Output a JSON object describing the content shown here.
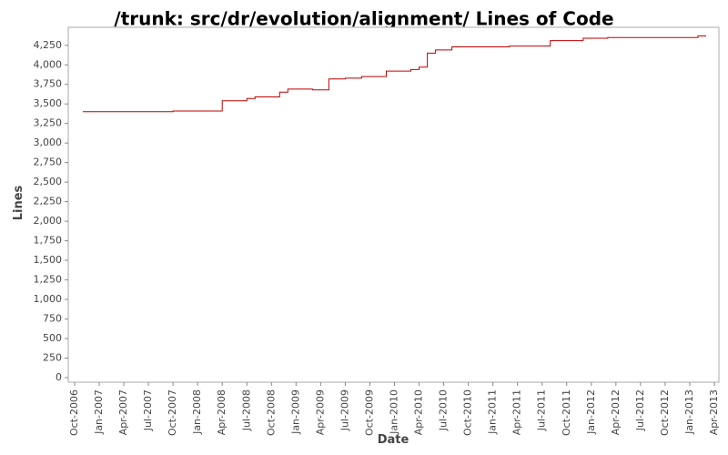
{
  "chart_data": {
    "type": "line",
    "title": "/trunk: src/dr/evolution/alignment/ Lines of Code",
    "x_label": "Date",
    "y_label": "Lines",
    "series": [
      {
        "name": "Lines",
        "color": "#c00000",
        "x": [
          "2006-11",
          "2007-10",
          "2007-10",
          "2008-04",
          "2008-04",
          "2008-07",
          "2008-07",
          "2008-08",
          "2008-08",
          "2008-11",
          "2008-11",
          "2008-12",
          "2008-12",
          "2009-03",
          "2009-03",
          "2009-05",
          "2009-05",
          "2009-07",
          "2009-07",
          "2009-09",
          "2009-09",
          "2009-12",
          "2009-12",
          "2010-03",
          "2010-03",
          "2010-04",
          "2010-04",
          "2010-05",
          "2010-05",
          "2010-06",
          "2010-06",
          "2010-08",
          "2010-08",
          "2011-03",
          "2011-03",
          "2011-08",
          "2011-08",
          "2011-12",
          "2011-12",
          "2012-03",
          "2012-03",
          "2013-02",
          "2013-02",
          "2013-03"
        ],
        "values": [
          3400,
          3400,
          3410,
          3410,
          3540,
          3540,
          3570,
          3570,
          3590,
          3590,
          3650,
          3650,
          3690,
          3690,
          3680,
          3680,
          3820,
          3820,
          3830,
          3830,
          3850,
          3850,
          3920,
          3920,
          3940,
          3940,
          3970,
          3970,
          4150,
          4150,
          4190,
          4190,
          4230,
          4230,
          4240,
          4240,
          4310,
          4310,
          4340,
          4340,
          4350,
          4350,
          4370,
          4370
        ]
      }
    ],
    "xlim": [
      "2006-10",
      "2013-04"
    ],
    "xticks": [
      {
        "value": "2006-10",
        "label": "Oct-2006"
      },
      {
        "value": "2007-01",
        "label": "Jan-2007"
      },
      {
        "value": "2007-04",
        "label": "Apr-2007"
      },
      {
        "value": "2007-07",
        "label": "Jul-2007"
      },
      {
        "value": "2007-10",
        "label": "Oct-2007"
      },
      {
        "value": "2008-01",
        "label": "Jan-2008"
      },
      {
        "value": "2008-04",
        "label": "Apr-2008"
      },
      {
        "value": "2008-07",
        "label": "Jul-2008"
      },
      {
        "value": "2008-10",
        "label": "Oct-2008"
      },
      {
        "value": "2009-01",
        "label": "Jan-2009"
      },
      {
        "value": "2009-04",
        "label": "Apr-2009"
      },
      {
        "value": "2009-07",
        "label": "Jul-2009"
      },
      {
        "value": "2009-10",
        "label": "Oct-2009"
      },
      {
        "value": "2010-01",
        "label": "Jan-2010"
      },
      {
        "value": "2010-04",
        "label": "Apr-2010"
      },
      {
        "value": "2010-07",
        "label": "Jul-2010"
      },
      {
        "value": "2010-10",
        "label": "Oct-2010"
      },
      {
        "value": "2011-01",
        "label": "Jan-2011"
      },
      {
        "value": "2011-04",
        "label": "Apr-2011"
      },
      {
        "value": "2011-07",
        "label": "Jul-2011"
      },
      {
        "value": "2011-10",
        "label": "Oct-2011"
      },
      {
        "value": "2012-01",
        "label": "Jan-2012"
      },
      {
        "value": "2012-04",
        "label": "Apr-2012"
      },
      {
        "value": "2012-07",
        "label": "Jul-2012"
      },
      {
        "value": "2012-10",
        "label": "Oct-2012"
      },
      {
        "value": "2013-01",
        "label": "Jan-2013"
      },
      {
        "value": "2013-04",
        "label": "Apr-2013"
      }
    ],
    "ylim": [
      0,
      4480
    ],
    "yticks": [
      0,
      250,
      500,
      750,
      {
        "value": 1000,
        "label": "1,000"
      },
      {
        "value": 1250,
        "label": "1,250"
      },
      {
        "value": 1500,
        "label": "1,500"
      },
      {
        "value": 1750,
        "label": "1,750"
      },
      {
        "value": 2000,
        "label": "2,000"
      },
      {
        "value": 2250,
        "label": "2,250"
      },
      {
        "value": 2500,
        "label": "2,500"
      },
      {
        "value": 2750,
        "label": "2,750"
      },
      {
        "value": 3000,
        "label": "3,000"
      },
      {
        "value": 3250,
        "label": "3,250"
      },
      {
        "value": 3500,
        "label": "3,500"
      },
      {
        "value": 3750,
        "label": "3,750"
      },
      {
        "value": 4000,
        "label": "4,000"
      },
      {
        "value": 4250,
        "label": "4,250"
      }
    ],
    "grid": false
  }
}
